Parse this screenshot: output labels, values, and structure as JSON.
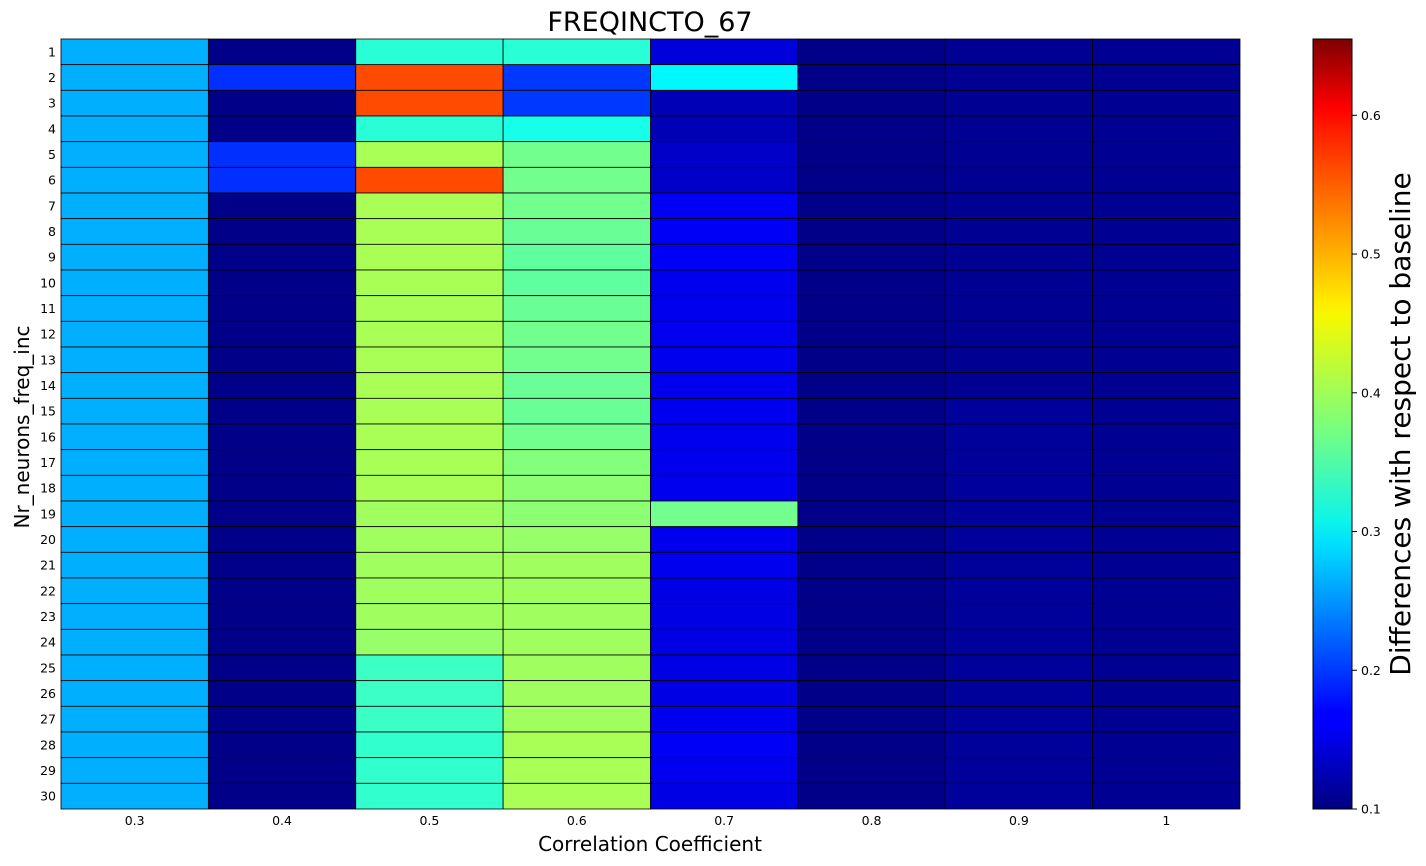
{
  "chart_data": {
    "type": "heatmap",
    "title": "FREQINCTO_67",
    "xlabel": "Correlation Coefficient",
    "ylabel": "Nr_neurons_freq_inc",
    "x_categories": [
      "0.3",
      "0.4",
      "0.5",
      "0.6",
      "0.7",
      "0.8",
      "0.9",
      "1"
    ],
    "y_categories": [
      "1",
      "2",
      "3",
      "4",
      "5",
      "6",
      "7",
      "8",
      "9",
      "10",
      "11",
      "12",
      "13",
      "14",
      "15",
      "16",
      "17",
      "18",
      "19",
      "20",
      "21",
      "22",
      "23",
      "24",
      "25",
      "26",
      "27",
      "28",
      "29",
      "30"
    ],
    "colorbar": {
      "label": "Differences with respect to baseline",
      "colormap": "jet",
      "vmin": 0.1,
      "vmax": 0.655,
      "ticks": [
        "0.1",
        "0.2",
        "0.3",
        "0.4",
        "0.5",
        "0.6"
      ]
    },
    "values": [
      [
        0.265,
        0.105,
        0.33,
        0.33,
        0.15,
        0.105,
        0.11,
        0.11
      ],
      [
        0.265,
        0.195,
        0.545,
        0.2,
        0.305,
        0.105,
        0.11,
        0.11
      ],
      [
        0.265,
        0.105,
        0.545,
        0.2,
        0.13,
        0.105,
        0.11,
        0.11
      ],
      [
        0.265,
        0.105,
        0.33,
        0.32,
        0.13,
        0.105,
        0.11,
        0.11
      ],
      [
        0.265,
        0.195,
        0.4,
        0.37,
        0.14,
        0.105,
        0.11,
        0.11
      ],
      [
        0.265,
        0.195,
        0.545,
        0.37,
        0.14,
        0.105,
        0.11,
        0.11
      ],
      [
        0.265,
        0.105,
        0.4,
        0.37,
        0.165,
        0.105,
        0.11,
        0.11
      ],
      [
        0.265,
        0.105,
        0.4,
        0.365,
        0.165,
        0.105,
        0.11,
        0.11
      ],
      [
        0.265,
        0.105,
        0.4,
        0.36,
        0.165,
        0.105,
        0.11,
        0.11
      ],
      [
        0.265,
        0.105,
        0.4,
        0.36,
        0.16,
        0.105,
        0.11,
        0.11
      ],
      [
        0.265,
        0.105,
        0.4,
        0.365,
        0.16,
        0.105,
        0.11,
        0.11
      ],
      [
        0.265,
        0.105,
        0.4,
        0.37,
        0.16,
        0.105,
        0.11,
        0.11
      ],
      [
        0.265,
        0.105,
        0.4,
        0.37,
        0.16,
        0.105,
        0.11,
        0.11
      ],
      [
        0.265,
        0.105,
        0.4,
        0.365,
        0.16,
        0.105,
        0.11,
        0.11
      ],
      [
        0.265,
        0.105,
        0.4,
        0.365,
        0.16,
        0.105,
        0.115,
        0.11
      ],
      [
        0.265,
        0.105,
        0.4,
        0.37,
        0.16,
        0.105,
        0.115,
        0.11
      ],
      [
        0.265,
        0.105,
        0.4,
        0.38,
        0.16,
        0.105,
        0.115,
        0.11
      ],
      [
        0.265,
        0.105,
        0.4,
        0.385,
        0.16,
        0.105,
        0.115,
        0.11
      ],
      [
        0.265,
        0.105,
        0.395,
        0.385,
        0.37,
        0.105,
        0.115,
        0.11
      ],
      [
        0.265,
        0.105,
        0.395,
        0.39,
        0.16,
        0.105,
        0.115,
        0.11
      ],
      [
        0.265,
        0.105,
        0.395,
        0.395,
        0.16,
        0.105,
        0.115,
        0.11
      ],
      [
        0.265,
        0.105,
        0.395,
        0.395,
        0.155,
        0.105,
        0.115,
        0.11
      ],
      [
        0.265,
        0.105,
        0.395,
        0.395,
        0.155,
        0.105,
        0.115,
        0.11
      ],
      [
        0.265,
        0.105,
        0.39,
        0.395,
        0.155,
        0.105,
        0.115,
        0.11
      ],
      [
        0.265,
        0.105,
        0.34,
        0.395,
        0.155,
        0.105,
        0.115,
        0.11
      ],
      [
        0.265,
        0.105,
        0.34,
        0.395,
        0.155,
        0.105,
        0.115,
        0.11
      ],
      [
        0.265,
        0.105,
        0.34,
        0.395,
        0.16,
        0.105,
        0.115,
        0.11
      ],
      [
        0.265,
        0.105,
        0.335,
        0.4,
        0.165,
        0.105,
        0.115,
        0.11
      ],
      [
        0.265,
        0.105,
        0.335,
        0.4,
        0.16,
        0.105,
        0.115,
        0.11
      ],
      [
        0.265,
        0.105,
        0.335,
        0.4,
        0.155,
        0.105,
        0.115,
        0.11
      ]
    ]
  }
}
